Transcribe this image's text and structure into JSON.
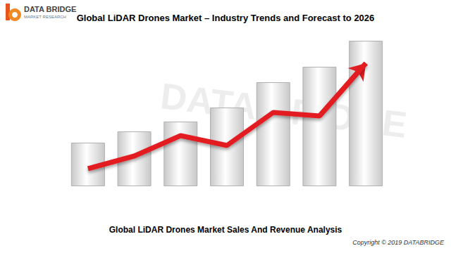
{
  "chart_data": {
    "type": "bar",
    "title": "Global LiDAR Drones Market – Industry Trends and Forecast to 2026",
    "subtitle": "Global LiDAR Drones Market Sales And Revenue Analysis",
    "annotations": [
      "DATA BRIDGE",
      "MARKET RESEARCH",
      "Copyright © 2019 DATABRIDGE",
      "DATA BRIDGE"
    ],
    "categories": [
      null,
      null,
      null,
      null,
      null,
      null,
      null
    ],
    "series": [
      {
        "type": "bar",
        "color": "#c8c8c8",
        "values": [
          62,
          78,
          92,
          112,
          148,
          170,
          207
        ]
      },
      {
        "type": "line",
        "color": "#e31e24",
        "values": [
          25,
          43,
          72,
          58,
          105,
          100,
          175
        ]
      }
    ],
    "ylim": [
      0,
      220
    ],
    "yticks": [
      0,
      220
    ],
    "grid": false,
    "tick_labels": false
  }
}
